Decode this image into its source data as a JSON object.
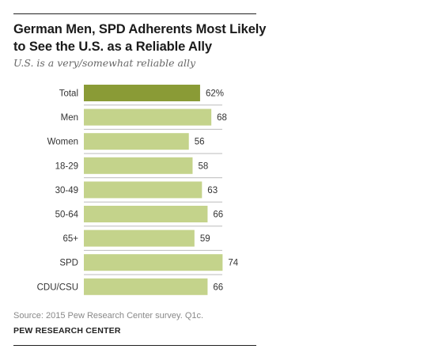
{
  "title": "German Men, SPD Adherents Most Likely to See the U.S. as a Reliable Ally",
  "subtitle": "U.S. is a very/somewhat reliable ally",
  "source": "Source: 2015 Pew Research Center survey. Q1c.",
  "organization": "PEW RESEARCH CENTER",
  "colors": {
    "highlight": "#8a9b36",
    "bar": "#c4d38b",
    "divider": "#bbbbbb"
  },
  "chart_data": {
    "type": "bar",
    "orientation": "horizontal",
    "categories": [
      "Total",
      "Men",
      "Women",
      "18-29",
      "30-49",
      "50-64",
      "65+",
      "SPD",
      "CDU/CSU"
    ],
    "values": [
      62,
      68,
      56,
      58,
      63,
      66,
      59,
      74,
      66
    ],
    "value_labels": [
      "62%",
      "68",
      "56",
      "58",
      "63",
      "66",
      "59",
      "74",
      "66"
    ],
    "highlight_index": 0,
    "xlim": [
      0,
      100
    ],
    "grid": false,
    "legend": "none"
  }
}
